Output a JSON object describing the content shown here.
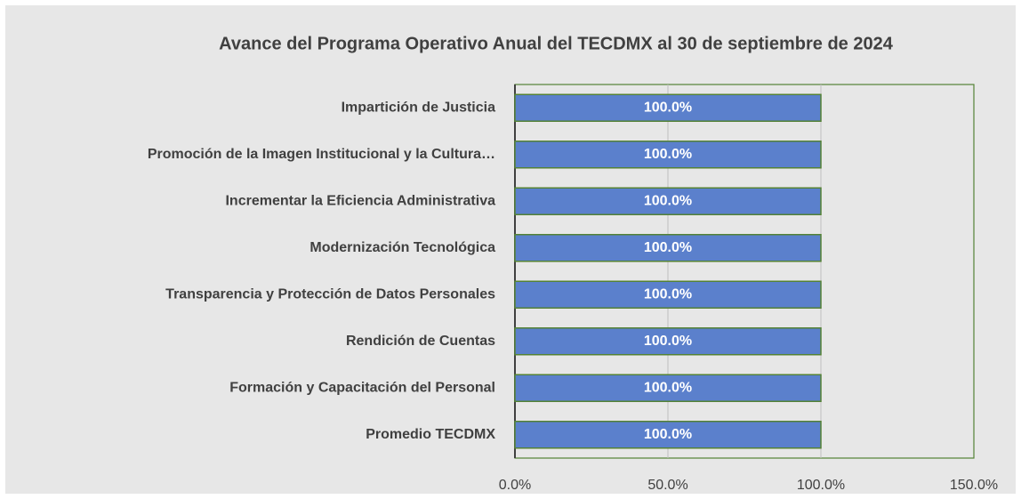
{
  "chart_data": {
    "type": "bar",
    "orientation": "horizontal",
    "title": "Avance del Programa Operativo Anual del TECDMX al 30 de septiembre de 2024",
    "categories": [
      "Impartición de Justicia",
      "Promoción de la Imagen Institucional y la Cultura…",
      "Incrementar la Eficiencia Administrativa",
      "Modernización Tecnológica",
      "Transparencia y Protección de Datos Personales",
      "Rendición de Cuentas",
      "Formación y Capacitación del Personal",
      "Promedio TECDMX"
    ],
    "values": [
      100,
      100,
      100,
      100,
      100,
      100,
      100,
      100
    ],
    "value_labels": [
      "100.0%",
      "100.0%",
      "100.0%",
      "100.0%",
      "100.0%",
      "100.0%",
      "100.0%",
      "100.0%"
    ],
    "color": "#5b80cc",
    "xlim": [
      0,
      150
    ],
    "xticks": [
      {
        "value": 0,
        "label": "0.0%"
      },
      {
        "value": 50,
        "label": "50.0%"
      },
      {
        "value": 100,
        "label": "100.0%"
      },
      {
        "value": 150,
        "label": "150.0%"
      }
    ],
    "grid": true
  }
}
